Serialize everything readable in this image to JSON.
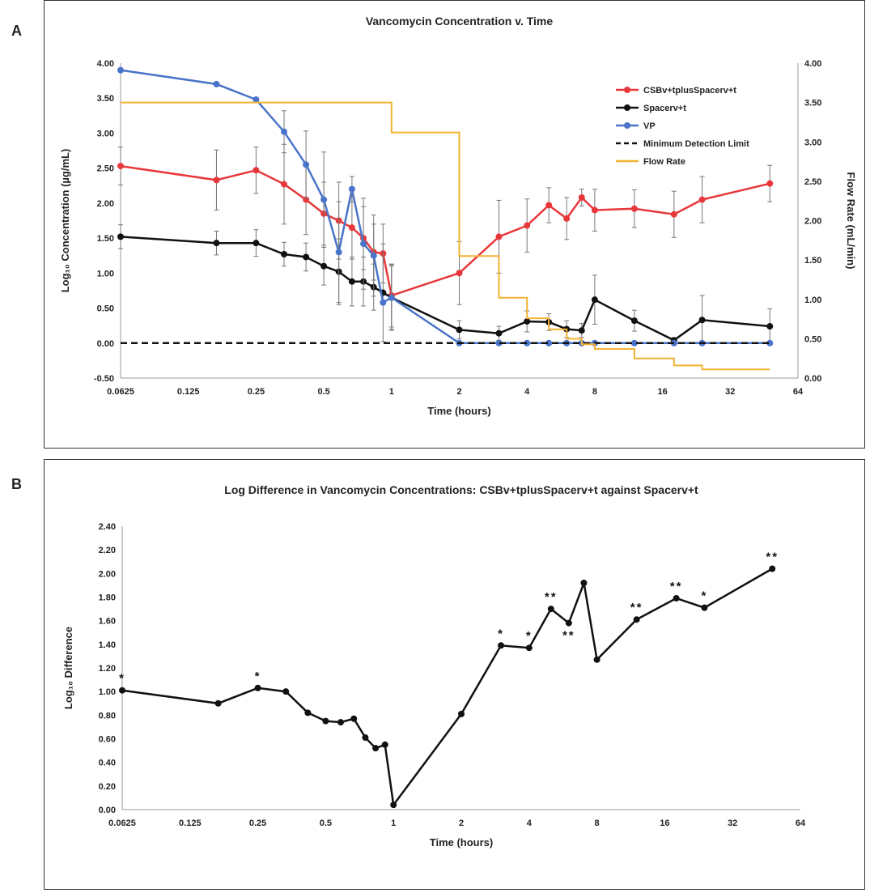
{
  "panels": [
    {
      "letter": "A",
      "chart_data": {
        "type": "line",
        "title": "Vancomycin Concentration v. Time",
        "xlabel": "Time (hours)",
        "ylabel": "Log₁₀ Concentration (µg/mL)",
        "y2label": "Flow Rate (mL/min)",
        "xscale": "log2",
        "xlim": [
          0.0625,
          64
        ],
        "xticks": [
          0.0625,
          0.125,
          0.25,
          0.5,
          1,
          2,
          4,
          8,
          16,
          32,
          64
        ],
        "xtick_labels": [
          "0.0625",
          "0.125",
          "0.25",
          "0.5",
          "1",
          "2",
          "4",
          "8",
          "16",
          "32",
          "64"
        ],
        "ylim": [
          -0.5,
          4.0
        ],
        "yticks": [
          -0.5,
          0,
          0.5,
          1.0,
          1.5,
          2.0,
          2.5,
          3.0,
          3.5,
          4.0
        ],
        "ytick_labels": [
          "-0.50",
          "0.00",
          "0.50",
          "1.00",
          "1.50",
          "2.00",
          "2.50",
          "3.00",
          "3.50",
          "4.00"
        ],
        "y2lim": [
          0,
          4.0
        ],
        "y2ticks": [
          0,
          0.5,
          1.0,
          1.5,
          2.0,
          2.5,
          3.0,
          3.5,
          4.0
        ],
        "y2tick_labels": [
          "0.00",
          "0.50",
          "1.00",
          "1.50",
          "2.00",
          "2.50",
          "3.00",
          "3.50",
          "4.00"
        ],
        "legend_position": "top-right",
        "grid": false,
        "series": [
          {
            "name": "CSBv+tplusSpacerv+t",
            "color": "#e8373b",
            "marker": "circle",
            "points": [
              [
                0.0625,
                2.53,
                0.27
              ],
              [
                0.1667,
                2.33,
                0.43
              ],
              [
                0.25,
                2.47,
                0.33
              ],
              [
                0.333,
                2.27,
                0.57
              ],
              [
                0.4167,
                2.05,
                0.5
              ],
              [
                0.5,
                1.85,
                0.45
              ],
              [
                0.583,
                1.75,
                0.55
              ],
              [
                0.667,
                1.65,
                0.45
              ],
              [
                0.75,
                1.5,
                0.45
              ],
              [
                0.833,
                1.3,
                0.4
              ],
              [
                0.917,
                1.28,
                0.42
              ],
              [
                1,
                0.68,
                0.45
              ],
              [
                2,
                1.0,
                0.45
              ],
              [
                3,
                1.52,
                0.52
              ],
              [
                4,
                1.68,
                0.38
              ],
              [
                5,
                1.97,
                0.25
              ],
              [
                6,
                1.78,
                0.3
              ],
              [
                7,
                2.08,
                0.12
              ],
              [
                8,
                1.9,
                0.3
              ],
              [
                12,
                1.92,
                0.27
              ],
              [
                18,
                1.84,
                0.33
              ],
              [
                24,
                2.05,
                0.33
              ],
              [
                48,
                2.28,
                0.26
              ]
            ]
          },
          {
            "name": "Spacerv+t",
            "color": "#111111",
            "marker": "circle",
            "points": [
              [
                0.0625,
                1.52,
                0.17
              ],
              [
                0.1667,
                1.43,
                0.17
              ],
              [
                0.25,
                1.43,
                0.19
              ],
              [
                0.333,
                1.27,
                0.17
              ],
              [
                0.4167,
                1.23,
                0.2
              ],
              [
                0.5,
                1.1,
                0.27
              ],
              [
                0.583,
                1.02,
                0.47
              ],
              [
                0.667,
                0.88,
                0.35
              ],
              [
                0.75,
                0.88,
                0.35
              ],
              [
                0.833,
                0.8,
                0.33
              ],
              [
                0.917,
                0.72,
                0.7
              ],
              [
                1,
                0.65,
                0.45
              ],
              [
                2,
                0.19,
                0.13
              ],
              [
                3,
                0.14,
                0.1
              ],
              [
                4,
                0.31,
                0.15
              ],
              [
                5,
                0.3,
                0.12
              ],
              [
                6,
                0.2,
                0.12
              ],
              [
                7,
                0.18,
                0.1
              ],
              [
                8,
                0.62,
                0.35
              ],
              [
                12,
                0.32,
                0.15
              ],
              [
                18,
                0.04,
                0.04
              ],
              [
                24,
                0.33,
                0.35
              ],
              [
                48,
                0.24,
                0.25
              ]
            ]
          },
          {
            "name": "VP",
            "color": "#4a74c9",
            "marker": "circle",
            "points": [
              [
                0.0625,
                3.9,
                0
              ],
              [
                0.1667,
                3.7,
                0
              ],
              [
                0.25,
                3.48,
                0
              ],
              [
                0.333,
                3.02,
                0.3
              ],
              [
                0.4167,
                2.55,
                0.48
              ],
              [
                0.5,
                2.05,
                0.68
              ],
              [
                0.583,
                1.3,
                0.72
              ],
              [
                0.667,
                2.2,
                0.18
              ],
              [
                0.75,
                1.42,
                0.65
              ],
              [
                0.833,
                1.25,
                0.58
              ],
              [
                0.917,
                0.58,
                0
              ],
              [
                1,
                0.65,
                0.47
              ],
              [
                2,
                0,
                0
              ],
              [
                3,
                0,
                0
              ],
              [
                4,
                0,
                0
              ],
              [
                5,
                0,
                0
              ],
              [
                6,
                0,
                0
              ],
              [
                7,
                0,
                0
              ],
              [
                8,
                0,
                0
              ],
              [
                12,
                0,
                0
              ],
              [
                18,
                0,
                0
              ],
              [
                24,
                0,
                0
              ],
              [
                48,
                0,
                0
              ]
            ]
          },
          {
            "name": "Minimum Detection Limit",
            "color": "#111111",
            "style": "dashed",
            "points": [
              [
                0.0625,
                0
              ],
              [
                48,
                0
              ]
            ]
          },
          {
            "name": "Flow Rate",
            "color": "#f2b233",
            "style": "step",
            "axis": "right",
            "points": [
              [
                0.0625,
                3.5
              ],
              [
                1,
                3.5
              ],
              [
                1,
                3.12
              ],
              [
                2,
                3.12
              ],
              [
                2,
                1.55
              ],
              [
                3,
                1.55
              ],
              [
                3,
                1.02
              ],
              [
                4,
                1.02
              ],
              [
                4,
                0.76
              ],
              [
                5,
                0.76
              ],
              [
                5,
                0.62
              ],
              [
                6,
                0.62
              ],
              [
                6,
                0.5
              ],
              [
                7,
                0.5
              ],
              [
                7,
                0.43
              ],
              [
                8,
                0.43
              ],
              [
                8,
                0.37
              ],
              [
                12,
                0.37
              ],
              [
                12,
                0.25
              ],
              [
                18,
                0.25
              ],
              [
                18,
                0.16
              ],
              [
                24,
                0.16
              ],
              [
                24,
                0.11
              ],
              [
                48,
                0.11
              ]
            ]
          }
        ]
      }
    },
    {
      "letter": "B",
      "chart_data": {
        "type": "line",
        "title": "Log Difference in Vancomycin Concentrations: CSBv+tplusSpacerv+t against Spacerv+t",
        "xlabel": "Time (hours)",
        "ylabel": "Log₁₀ Difference",
        "xscale": "log2",
        "xlim": [
          0.0625,
          64
        ],
        "xticks": [
          0.0625,
          0.125,
          0.25,
          0.5,
          1,
          2,
          4,
          8,
          16,
          32,
          64
        ],
        "xtick_labels": [
          "0.0625",
          "0.125",
          "0.25",
          "0.5",
          "1",
          "2",
          "4",
          "8",
          "16",
          "32",
          "64"
        ],
        "ylim": [
          0,
          2.4
        ],
        "yticks": [
          0,
          0.2,
          0.4,
          0.6,
          0.8,
          1.0,
          1.2,
          1.4,
          1.6,
          1.8,
          2.0,
          2.2,
          2.4
        ],
        "ytick_labels": [
          "0.00",
          "0.20",
          "0.40",
          "0.60",
          "0.80",
          "1.00",
          "1.20",
          "1.40",
          "1.60",
          "1.80",
          "2.00",
          "2.20",
          "2.40"
        ],
        "grid": false,
        "series": [
          {
            "color": "#111111",
            "marker": "circle",
            "x": [
              0.0625,
              0.1667,
              0.25,
              0.333,
              0.4167,
              0.5,
              0.583,
              0.667,
              0.75,
              0.833,
              0.917,
              1,
              2,
              3,
              4,
              5,
              6,
              7,
              8,
              12,
              18,
              24,
              48
            ],
            "values": [
              1.01,
              0.9,
              1.03,
              1.0,
              0.82,
              0.75,
              0.74,
              0.77,
              0.61,
              0.52,
              0.55,
              0.04,
              0.81,
              1.39,
              1.37,
              1.7,
              1.58,
              1.92,
              1.27,
              1.61,
              1.79,
              1.71,
              2.04
            ]
          }
        ],
        "annotations": [
          {
            "x": 0.0625,
            "y": 1.01,
            "text": "*",
            "position": "above"
          },
          {
            "x": 0.25,
            "y": 1.03,
            "text": "*",
            "position": "above"
          },
          {
            "x": 3,
            "y": 1.39,
            "text": "*",
            "position": "above"
          },
          {
            "x": 4,
            "y": 1.37,
            "text": "*",
            "position": "above"
          },
          {
            "x": 5,
            "y": 1.7,
            "text": "**",
            "position": "above"
          },
          {
            "x": 6,
            "y": 1.58,
            "text": "**",
            "position": "below"
          },
          {
            "x": 12,
            "y": 1.61,
            "text": "**",
            "position": "above"
          },
          {
            "x": 18,
            "y": 1.79,
            "text": "**",
            "position": "above"
          },
          {
            "x": 24,
            "y": 1.71,
            "text": "*",
            "position": "above"
          },
          {
            "x": 48,
            "y": 2.04,
            "text": "**",
            "position": "above"
          }
        ]
      }
    }
  ]
}
